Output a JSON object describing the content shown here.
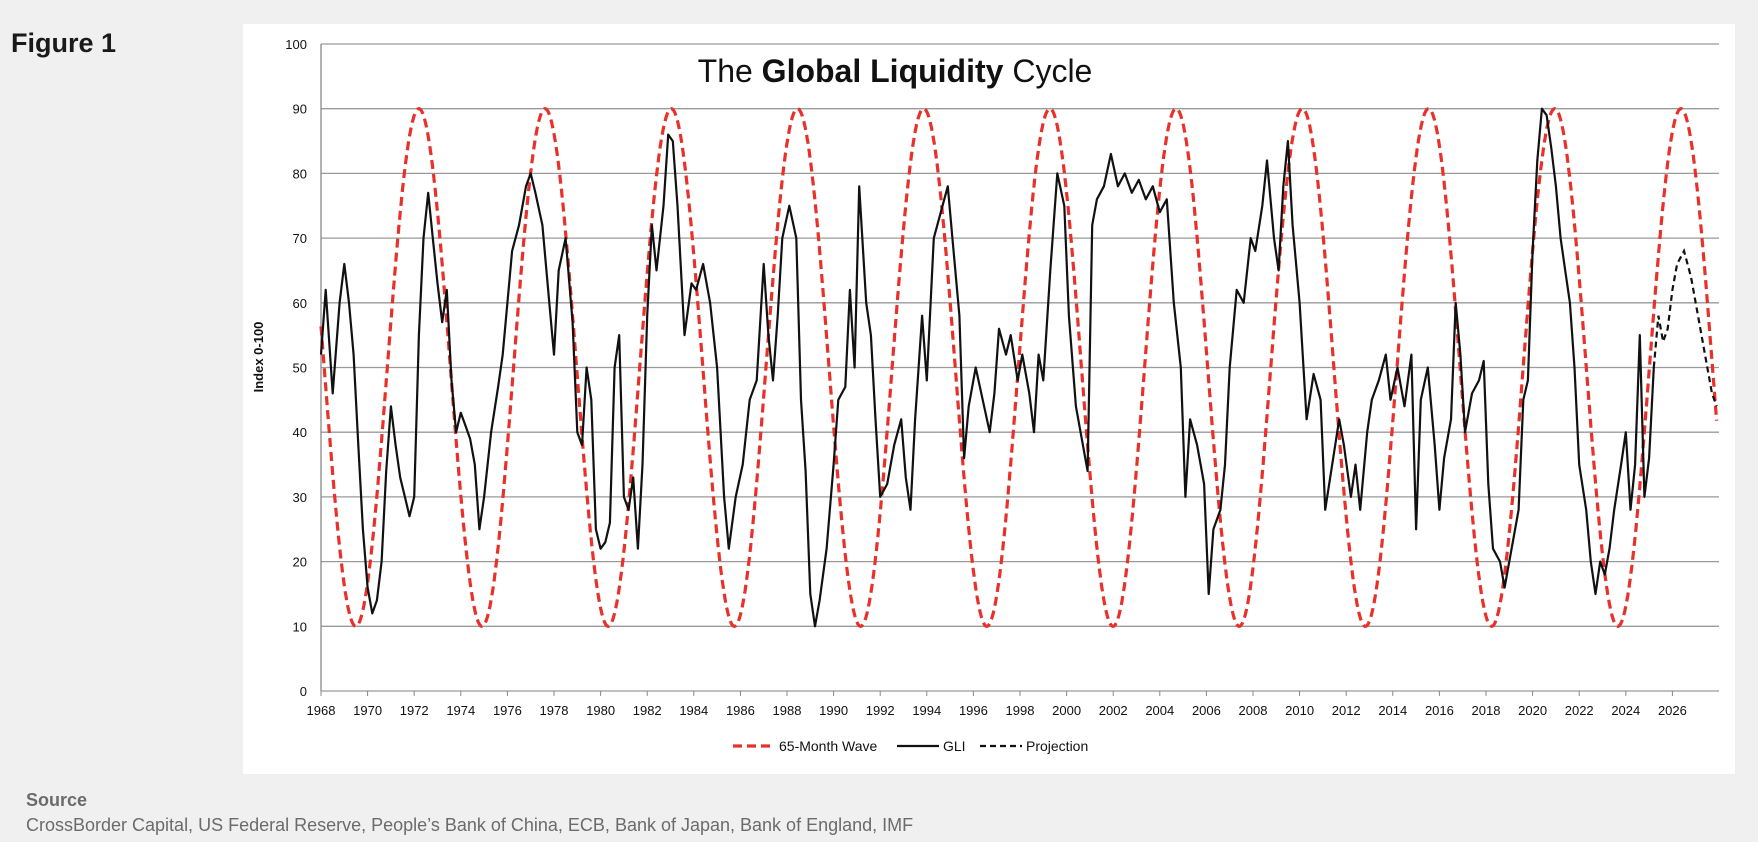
{
  "figure_label": "Figure 1",
  "source": {
    "heading": "Source",
    "text": "CrossBorder Capital, US Federal Reserve, People’s Bank of China, ECB, Bank of Japan, Bank of England, IMF"
  },
  "colors": {
    "wave": "#e8312a",
    "gli": "#111111",
    "projection": "#111111",
    "grid": "#9a9a9a"
  },
  "chart_data": {
    "type": "line",
    "title_parts": [
      "The ",
      "Global Liquidity",
      " Cycle"
    ],
    "xlabel": "",
    "ylabel": "Index 0-100",
    "ylim": [
      0,
      100
    ],
    "xlim": [
      1968,
      2028
    ],
    "grid": true,
    "legend_position": "bottom-center",
    "yticks": [
      0,
      10,
      20,
      30,
      40,
      50,
      60,
      70,
      80,
      90,
      100
    ],
    "xticks": [
      "1968",
      "1970",
      "1972",
      "1974",
      "1976",
      "1978",
      "1980",
      "1982",
      "1984",
      "1986",
      "1988",
      "1990",
      "1992",
      "1994",
      "1996",
      "1998",
      "2000",
      "2002",
      "2004",
      "2006",
      "2008",
      "2010",
      "2012",
      "2014",
      "2016",
      "2018",
      "2020",
      "2022",
      "2024",
      "2026"
    ],
    "series": [
      {
        "name": "65-Month Wave",
        "style": "dashed",
        "wave": {
          "period_years": 5.4167,
          "center": 50,
          "amplitude": 40,
          "first_peak": 1972.2
        },
        "x_start": 1968.0,
        "x_end": 2027.9
      },
      {
        "name": "GLI",
        "style": "solid",
        "points": [
          [
            1968.0,
            52
          ],
          [
            1968.2,
            62
          ],
          [
            1968.5,
            46
          ],
          [
            1968.8,
            60
          ],
          [
            1969.0,
            66
          ],
          [
            1969.2,
            60
          ],
          [
            1969.4,
            52
          ],
          [
            1969.6,
            38
          ],
          [
            1969.8,
            25
          ],
          [
            1970.0,
            16
          ],
          [
            1970.2,
            12
          ],
          [
            1970.4,
            14
          ],
          [
            1970.6,
            20
          ],
          [
            1970.8,
            34
          ],
          [
            1971.0,
            44
          ],
          [
            1971.2,
            38
          ],
          [
            1971.4,
            33
          ],
          [
            1971.6,
            30
          ],
          [
            1971.8,
            27
          ],
          [
            1972.0,
            30
          ],
          [
            1972.2,
            55
          ],
          [
            1972.4,
            70
          ],
          [
            1972.6,
            77
          ],
          [
            1972.8,
            70
          ],
          [
            1973.0,
            63
          ],
          [
            1973.2,
            57
          ],
          [
            1973.4,
            62
          ],
          [
            1973.6,
            48
          ],
          [
            1973.8,
            40
          ],
          [
            1974.0,
            43
          ],
          [
            1974.2,
            41
          ],
          [
            1974.4,
            39
          ],
          [
            1974.6,
            35
          ],
          [
            1974.8,
            25
          ],
          [
            1975.0,
            30
          ],
          [
            1975.3,
            40
          ],
          [
            1975.6,
            47
          ],
          [
            1975.8,
            52
          ],
          [
            1976.0,
            60
          ],
          [
            1976.2,
            68
          ],
          [
            1976.5,
            72
          ],
          [
            1976.8,
            78
          ],
          [
            1977.0,
            80
          ],
          [
            1977.2,
            77
          ],
          [
            1977.5,
            72
          ],
          [
            1977.8,
            60
          ],
          [
            1978.0,
            52
          ],
          [
            1978.2,
            65
          ],
          [
            1978.5,
            70
          ],
          [
            1978.8,
            57
          ],
          [
            1979.0,
            40
          ],
          [
            1979.2,
            38
          ],
          [
            1979.4,
            50
          ],
          [
            1979.6,
            45
          ],
          [
            1979.8,
            25
          ],
          [
            1980.0,
            22
          ],
          [
            1980.2,
            23
          ],
          [
            1980.4,
            26
          ],
          [
            1980.6,
            50
          ],
          [
            1980.8,
            55
          ],
          [
            1981.0,
            30
          ],
          [
            1981.2,
            28
          ],
          [
            1981.4,
            33
          ],
          [
            1981.6,
            22
          ],
          [
            1981.8,
            35
          ],
          [
            1982.0,
            58
          ],
          [
            1982.2,
            72
          ],
          [
            1982.4,
            65
          ],
          [
            1982.7,
            75
          ],
          [
            1982.9,
            86
          ],
          [
            1983.1,
            85
          ],
          [
            1983.3,
            75
          ],
          [
            1983.6,
            55
          ],
          [
            1983.9,
            63
          ],
          [
            1984.1,
            62
          ],
          [
            1984.4,
            66
          ],
          [
            1984.7,
            60
          ],
          [
            1985.0,
            50
          ],
          [
            1985.3,
            30
          ],
          [
            1985.5,
            22
          ],
          [
            1985.8,
            30
          ],
          [
            1986.1,
            35
          ],
          [
            1986.4,
            45
          ],
          [
            1986.7,
            48
          ],
          [
            1987.0,
            66
          ],
          [
            1987.2,
            55
          ],
          [
            1987.4,
            48
          ],
          [
            1987.6,
            58
          ],
          [
            1987.8,
            70
          ],
          [
            1988.1,
            75
          ],
          [
            1988.4,
            70
          ],
          [
            1988.6,
            45
          ],
          [
            1988.8,
            34
          ],
          [
            1989.0,
            15
          ],
          [
            1989.2,
            10
          ],
          [
            1989.4,
            14
          ],
          [
            1989.7,
            22
          ],
          [
            1990.0,
            35
          ],
          [
            1990.2,
            45
          ],
          [
            1990.5,
            47
          ],
          [
            1990.7,
            62
          ],
          [
            1990.9,
            50
          ],
          [
            1991.1,
            78
          ],
          [
            1991.4,
            60
          ],
          [
            1991.6,
            55
          ],
          [
            1991.8,
            42
          ],
          [
            1992.0,
            30
          ],
          [
            1992.3,
            32
          ],
          [
            1992.6,
            38
          ],
          [
            1992.9,
            42
          ],
          [
            1993.1,
            33
          ],
          [
            1993.3,
            28
          ],
          [
            1993.5,
            42
          ],
          [
            1993.8,
            58
          ],
          [
            1994.0,
            48
          ],
          [
            1994.3,
            70
          ],
          [
            1994.6,
            74
          ],
          [
            1994.9,
            78
          ],
          [
            1995.1,
            70
          ],
          [
            1995.4,
            58
          ],
          [
            1995.6,
            36
          ],
          [
            1995.8,
            44
          ],
          [
            1996.1,
            50
          ],
          [
            1996.4,
            45
          ],
          [
            1996.7,
            40
          ],
          [
            1996.9,
            46
          ],
          [
            1997.1,
            56
          ],
          [
            1997.4,
            52
          ],
          [
            1997.6,
            55
          ],
          [
            1997.9,
            48
          ],
          [
            1998.1,
            52
          ],
          [
            1998.4,
            46
          ],
          [
            1998.6,
            40
          ],
          [
            1998.8,
            52
          ],
          [
            1999.0,
            48
          ],
          [
            1999.3,
            65
          ],
          [
            1999.6,
            80
          ],
          [
            1999.9,
            75
          ],
          [
            2000.1,
            58
          ],
          [
            2000.4,
            44
          ],
          [
            2000.7,
            38
          ],
          [
            2000.9,
            34
          ],
          [
            2001.1,
            72
          ],
          [
            2001.3,
            76
          ],
          [
            2001.6,
            78
          ],
          [
            2001.9,
            83
          ],
          [
            2002.2,
            78
          ],
          [
            2002.5,
            80
          ],
          [
            2002.8,
            77
          ],
          [
            2003.1,
            79
          ],
          [
            2003.4,
            76
          ],
          [
            2003.7,
            78
          ],
          [
            2004.0,
            74
          ],
          [
            2004.3,
            76
          ],
          [
            2004.6,
            60
          ],
          [
            2004.9,
            50
          ],
          [
            2005.1,
            30
          ],
          [
            2005.3,
            42
          ],
          [
            2005.6,
            38
          ],
          [
            2005.9,
            32
          ],
          [
            2006.1,
            15
          ],
          [
            2006.3,
            25
          ],
          [
            2006.6,
            28
          ],
          [
            2006.8,
            35
          ],
          [
            2007.0,
            50
          ],
          [
            2007.3,
            62
          ],
          [
            2007.6,
            60
          ],
          [
            2007.9,
            70
          ],
          [
            2008.1,
            68
          ],
          [
            2008.4,
            75
          ],
          [
            2008.6,
            82
          ],
          [
            2008.9,
            70
          ],
          [
            2009.1,
            65
          ],
          [
            2009.3,
            78
          ],
          [
            2009.5,
            85
          ],
          [
            2009.7,
            72
          ],
          [
            2010.0,
            60
          ],
          [
            2010.3,
            42
          ],
          [
            2010.6,
            49
          ],
          [
            2010.9,
            45
          ],
          [
            2011.1,
            28
          ],
          [
            2011.4,
            35
          ],
          [
            2011.7,
            42
          ],
          [
            2011.9,
            38
          ],
          [
            2012.2,
            30
          ],
          [
            2012.4,
            35
          ],
          [
            2012.6,
            28
          ],
          [
            2012.9,
            40
          ],
          [
            2013.1,
            45
          ],
          [
            2013.4,
            48
          ],
          [
            2013.7,
            52
          ],
          [
            2013.9,
            45
          ],
          [
            2014.2,
            50
          ],
          [
            2014.5,
            44
          ],
          [
            2014.8,
            52
          ],
          [
            2015.0,
            25
          ],
          [
            2015.2,
            45
          ],
          [
            2015.5,
            50
          ],
          [
            2015.8,
            38
          ],
          [
            2016.0,
            28
          ],
          [
            2016.2,
            36
          ],
          [
            2016.5,
            42
          ],
          [
            2016.7,
            60
          ],
          [
            2016.9,
            52
          ],
          [
            2017.1,
            40
          ],
          [
            2017.4,
            46
          ],
          [
            2017.7,
            48
          ],
          [
            2017.9,
            51
          ],
          [
            2018.1,
            32
          ],
          [
            2018.3,
            22
          ],
          [
            2018.6,
            20
          ],
          [
            2018.8,
            16
          ],
          [
            2019.1,
            22
          ],
          [
            2019.4,
            28
          ],
          [
            2019.6,
            45
          ],
          [
            2019.8,
            48
          ],
          [
            2020.0,
            68
          ],
          [
            2020.2,
            82
          ],
          [
            2020.4,
            90
          ],
          [
            2020.6,
            89
          ],
          [
            2020.8,
            84
          ],
          [
            2021.0,
            78
          ],
          [
            2021.2,
            70
          ],
          [
            2021.4,
            65
          ],
          [
            2021.6,
            60
          ],
          [
            2021.8,
            50
          ],
          [
            2022.0,
            35
          ],
          [
            2022.3,
            28
          ],
          [
            2022.5,
            20
          ],
          [
            2022.7,
            15
          ],
          [
            2022.9,
            20
          ],
          [
            2023.1,
            18
          ],
          [
            2023.3,
            22
          ],
          [
            2023.5,
            28
          ],
          [
            2023.8,
            35
          ],
          [
            2024.0,
            40
          ],
          [
            2024.2,
            28
          ],
          [
            2024.4,
            35
          ],
          [
            2024.6,
            55
          ],
          [
            2024.8,
            30
          ],
          [
            2025.0,
            36
          ],
          [
            2025.2,
            50
          ]
        ]
      },
      {
        "name": "Projection",
        "style": "dashed",
        "points": [
          [
            2025.2,
            50
          ],
          [
            2025.4,
            58
          ],
          [
            2025.6,
            54
          ],
          [
            2025.8,
            56
          ],
          [
            2026.0,
            62
          ],
          [
            2026.2,
            66
          ],
          [
            2026.5,
            68
          ],
          [
            2026.8,
            64
          ],
          [
            2027.1,
            58
          ],
          [
            2027.4,
            52
          ],
          [
            2027.7,
            46
          ],
          [
            2027.9,
            44
          ]
        ]
      }
    ]
  }
}
